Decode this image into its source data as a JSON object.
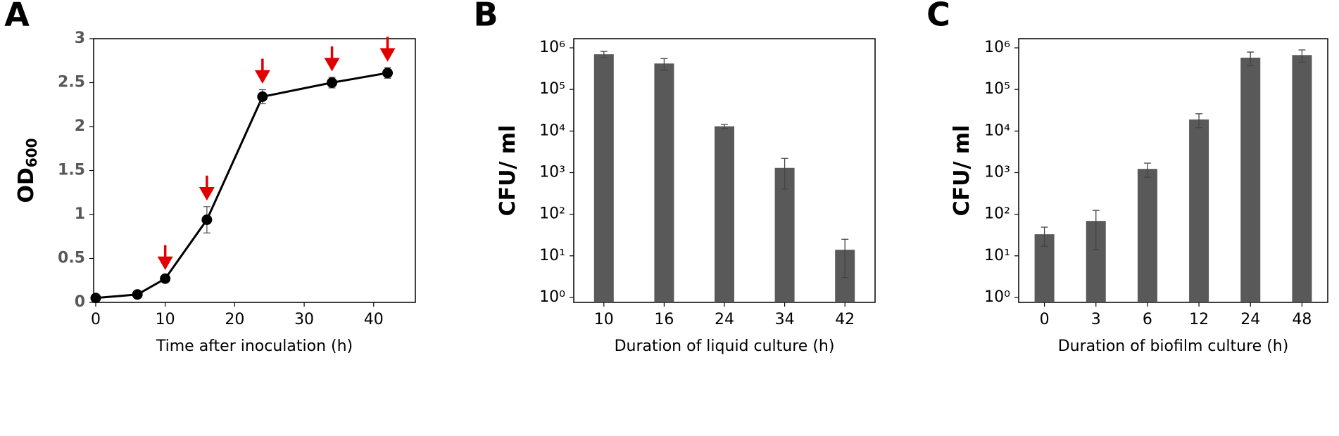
{
  "chart_data": [
    {
      "type": "line",
      "panel_label": "A",
      "x_label": "Time after inoculation (h)",
      "y_label": "OD",
      "y_label_sub": "600",
      "x": [
        0,
        6,
        10,
        16,
        24,
        34,
        42
      ],
      "values": [
        0.05,
        0.09,
        0.27,
        0.94,
        2.34,
        2.5,
        2.61
      ],
      "errors": [
        0.01,
        0.02,
        0.03,
        0.15,
        0.08,
        0.06,
        0.06
      ],
      "color": "#000000",
      "arrows": {
        "x": [
          10,
          16,
          24,
          34,
          42
        ],
        "color": "#e00000"
      },
      "xlim": [
        -0.3,
        46
      ],
      "xticks": [
        0,
        10,
        20,
        30,
        40
      ],
      "ylim": [
        0,
        3
      ],
      "yticks": [
        0,
        0.5,
        1,
        1.5,
        2,
        2.5,
        3
      ]
    },
    {
      "type": "bar",
      "panel_label": "B",
      "x_label": "Duration of liquid culture (h)",
      "y_label": "CFU/ ml",
      "log_scale": true,
      "categories": [
        "10",
        "16",
        "24",
        "34",
        "42"
      ],
      "values": [
        700000,
        420000,
        13000,
        1300,
        14
      ],
      "errors": [
        120000,
        130000,
        1500,
        900,
        11
      ],
      "color": "#595959",
      "ylim": [
        0.76,
        1660000
      ],
      "yticks": [
        {
          "value": 1,
          "label": "10⁰"
        },
        {
          "value": 10,
          "label": "10¹"
        },
        {
          "value": 100,
          "label": "10²"
        },
        {
          "value": 1000,
          "label": "10³"
        },
        {
          "value": 10000,
          "label": "10⁴"
        },
        {
          "value": 100000,
          "label": "10⁵"
        },
        {
          "value": 1000000,
          "label": "10⁶"
        }
      ]
    },
    {
      "type": "bar",
      "panel_label": "C",
      "x_label": "Duration of biofilm culture (h)",
      "y_label": "CFU/ ml",
      "log_scale": true,
      "categories": [
        "0",
        "3",
        "6",
        "12",
        "24",
        "48"
      ],
      "values": [
        33,
        69,
        1230,
        19000,
        580000,
        670000
      ],
      "errors": [
        16,
        55,
        460,
        7000,
        210000,
        220000
      ],
      "color": "#595959",
      "ylim": [
        0.76,
        1660000
      ],
      "yticks": [
        {
          "value": 1,
          "label": "10⁰"
        },
        {
          "value": 10,
          "label": "10¹"
        },
        {
          "value": 100,
          "label": "10²"
        },
        {
          "value": 1000,
          "label": "10³"
        },
        {
          "value": 10000,
          "label": "10⁴"
        },
        {
          "value": 100000,
          "label": "10⁵"
        },
        {
          "value": 1000000,
          "label": "10⁶"
        }
      ]
    }
  ]
}
